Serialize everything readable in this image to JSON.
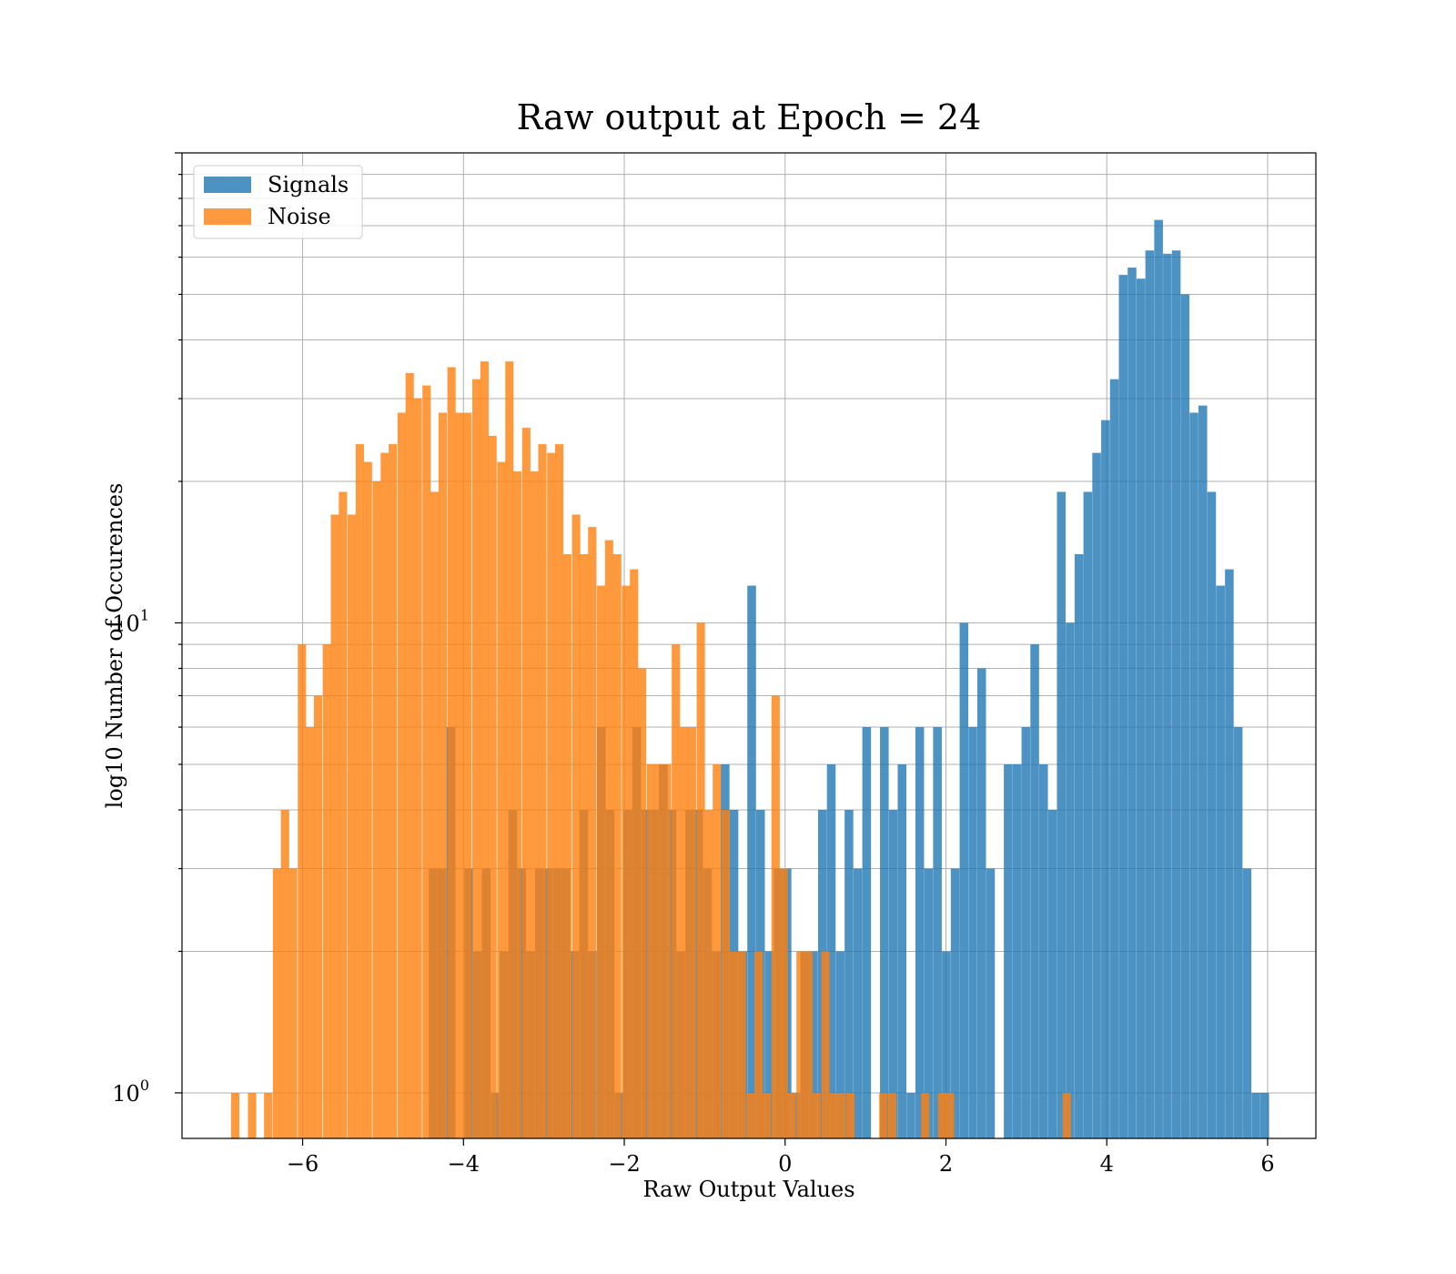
{
  "chart_data": {
    "type": "bar",
    "title": "Raw output at Epoch = 24",
    "xlabel": "Raw Output Values",
    "ylabel": "log10 Number of Occurences",
    "xlim": [
      -7.5,
      6.6
    ],
    "ylim": [
      0.8,
      100
    ],
    "yscale": "log",
    "grid": true,
    "legend_position": "top-left",
    "x_ticks": [
      {
        "value": -6,
        "label": "−6"
      },
      {
        "value": -4,
        "label": "−4"
      },
      {
        "value": -2,
        "label": "−2"
      },
      {
        "value": 0,
        "label": "0"
      },
      {
        "value": 2,
        "label": "2"
      },
      {
        "value": 4,
        "label": "4"
      },
      {
        "value": 6,
        "label": "6"
      }
    ],
    "y_ticks": [
      {
        "value": 1,
        "base": "10",
        "exp": "0"
      },
      {
        "value": 10,
        "base": "10",
        "exp": "1"
      }
    ],
    "series": [
      {
        "name": "Signals",
        "color": "#1f77b4",
        "opacity": 0.8,
        "bin_width": 0.108,
        "bins": [
          [
            -4.43,
            3
          ],
          [
            -4.32,
            3
          ],
          [
            -4.21,
            6
          ],
          [
            -3.99,
            3
          ],
          [
            -3.88,
            2
          ],
          [
            -3.77,
            3
          ],
          [
            -3.66,
            1
          ],
          [
            -3.55,
            2
          ],
          [
            -3.44,
            4
          ],
          [
            -3.33,
            3
          ],
          [
            -3.22,
            2
          ],
          [
            -3.11,
            3
          ],
          [
            -3.0,
            3
          ],
          [
            -2.89,
            3
          ],
          [
            -2.78,
            3
          ],
          [
            -2.67,
            2
          ],
          [
            -2.56,
            4
          ],
          [
            -2.45,
            2
          ],
          [
            -2.34,
            6
          ],
          [
            -2.23,
            4
          ],
          [
            -2.12,
            1
          ],
          [
            -2.01,
            4
          ],
          [
            -1.9,
            6
          ],
          [
            -1.79,
            4
          ],
          [
            -1.68,
            4
          ],
          [
            -1.57,
            5
          ],
          [
            -1.46,
            4
          ],
          [
            -1.35,
            2
          ],
          [
            -1.24,
            4
          ],
          [
            -1.13,
            4
          ],
          [
            -1.02,
            3
          ],
          [
            -0.91,
            2
          ],
          [
            -0.8,
            5
          ],
          [
            -0.69,
            4
          ],
          [
            -0.58,
            2
          ],
          [
            -0.47,
            12
          ],
          [
            -0.36,
            4
          ],
          [
            -0.25,
            2
          ],
          [
            -0.14,
            3
          ],
          [
            -0.03,
            3
          ],
          [
            0.08,
            1
          ],
          [
            0.19,
            2
          ],
          [
            0.3,
            2
          ],
          [
            0.41,
            4
          ],
          [
            0.52,
            5
          ],
          [
            0.63,
            2
          ],
          [
            0.74,
            4
          ],
          [
            0.85,
            3
          ],
          [
            0.96,
            6
          ],
          [
            1.18,
            6
          ],
          [
            1.29,
            4
          ],
          [
            1.4,
            5
          ],
          [
            1.51,
            1
          ],
          [
            1.62,
            6
          ],
          [
            1.73,
            3
          ],
          [
            1.84,
            6
          ],
          [
            1.95,
            2
          ],
          [
            2.06,
            3
          ],
          [
            2.17,
            10
          ],
          [
            2.28,
            6
          ],
          [
            2.39,
            8
          ],
          [
            2.5,
            3
          ],
          [
            2.72,
            5
          ],
          [
            2.83,
            5
          ],
          [
            2.94,
            6
          ],
          [
            3.05,
            9
          ],
          [
            3.16,
            5
          ],
          [
            3.27,
            4
          ],
          [
            3.38,
            19
          ],
          [
            3.49,
            10
          ],
          [
            3.6,
            14
          ],
          [
            3.71,
            19
          ],
          [
            3.82,
            23
          ],
          [
            3.93,
            27
          ],
          [
            4.04,
            33
          ],
          [
            4.15,
            55
          ],
          [
            4.26,
            57
          ],
          [
            4.37,
            54
          ],
          [
            4.48,
            62
          ],
          [
            4.59,
            72
          ],
          [
            4.7,
            61
          ],
          [
            4.81,
            62
          ],
          [
            4.92,
            50
          ],
          [
            5.03,
            28
          ],
          [
            5.14,
            29
          ],
          [
            5.25,
            19
          ],
          [
            5.36,
            12
          ],
          [
            5.47,
            13
          ],
          [
            5.58,
            6
          ],
          [
            5.69,
            3
          ],
          [
            5.8,
            1
          ],
          [
            5.91,
            1
          ]
        ]
      },
      {
        "name": "Noise",
        "color": "#ff7f0e",
        "opacity": 0.8,
        "bin_width": 0.103,
        "bins": [
          [
            -6.89,
            1
          ],
          [
            -6.68,
            1
          ],
          [
            -6.48,
            1
          ],
          [
            -6.37,
            3
          ],
          [
            -6.27,
            4
          ],
          [
            -6.17,
            3
          ],
          [
            -6.06,
            9
          ],
          [
            -5.96,
            6
          ],
          [
            -5.86,
            7
          ],
          [
            -5.75,
            9
          ],
          [
            -5.65,
            17
          ],
          [
            -5.55,
            19
          ],
          [
            -5.44,
            17
          ],
          [
            -5.34,
            24
          ],
          [
            -5.24,
            22
          ],
          [
            -5.13,
            20
          ],
          [
            -5.03,
            23
          ],
          [
            -4.93,
            24
          ],
          [
            -4.82,
            28
          ],
          [
            -4.72,
            34
          ],
          [
            -4.62,
            30
          ],
          [
            -4.51,
            32
          ],
          [
            -4.41,
            19
          ],
          [
            -4.31,
            28
          ],
          [
            -4.2,
            35
          ],
          [
            -4.1,
            28
          ],
          [
            -4.0,
            28
          ],
          [
            -3.89,
            33
          ],
          [
            -3.79,
            36
          ],
          [
            -3.69,
            25
          ],
          [
            -3.58,
            22
          ],
          [
            -3.48,
            36
          ],
          [
            -3.38,
            21
          ],
          [
            -3.27,
            26
          ],
          [
            -3.17,
            21
          ],
          [
            -3.07,
            24
          ],
          [
            -2.96,
            23
          ],
          [
            -2.86,
            24
          ],
          [
            -2.76,
            14
          ],
          [
            -2.65,
            17
          ],
          [
            -2.55,
            14
          ],
          [
            -2.45,
            16
          ],
          [
            -2.34,
            12
          ],
          [
            -2.24,
            15
          ],
          [
            -2.14,
            14
          ],
          [
            -2.03,
            12
          ],
          [
            -1.93,
            13
          ],
          [
            -1.83,
            8
          ],
          [
            -1.72,
            5
          ],
          [
            -1.62,
            5
          ],
          [
            -1.52,
            5
          ],
          [
            -1.41,
            9
          ],
          [
            -1.31,
            6
          ],
          [
            -1.21,
            6
          ],
          [
            -1.1,
            10
          ],
          [
            -1.0,
            4
          ],
          [
            -0.9,
            5
          ],
          [
            -0.79,
            4
          ],
          [
            -0.69,
            2
          ],
          [
            -0.59,
            2
          ],
          [
            -0.48,
            1
          ],
          [
            -0.38,
            2
          ],
          [
            -0.28,
            1
          ],
          [
            -0.17,
            7
          ],
          [
            -0.07,
            3
          ],
          [
            0.03,
            1
          ],
          [
            0.14,
            2
          ],
          [
            0.24,
            2
          ],
          [
            0.34,
            1
          ],
          [
            0.45,
            2
          ],
          [
            0.55,
            1
          ],
          [
            0.65,
            1
          ],
          [
            0.76,
            1
          ],
          [
            1.17,
            1
          ],
          [
            1.28,
            1
          ],
          [
            1.69,
            1
          ],
          [
            1.9,
            1
          ],
          [
            2.0,
            1
          ],
          [
            3.45,
            1
          ]
        ]
      }
    ]
  }
}
